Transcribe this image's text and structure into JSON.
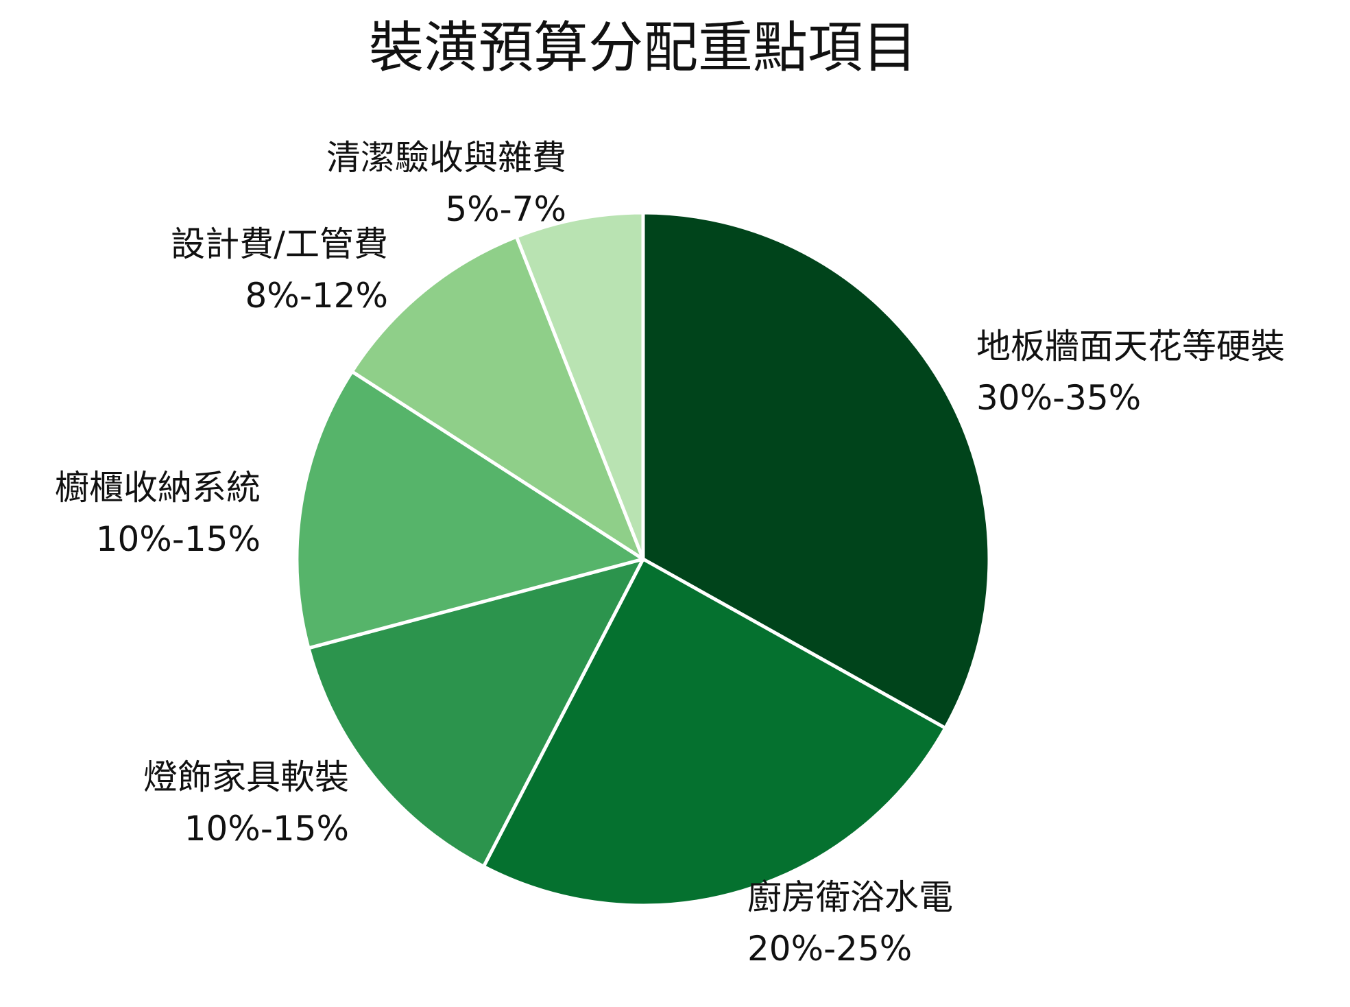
{
  "chart_data": {
    "type": "pie",
    "title": "裝潢預算分配重點項目",
    "slices": [
      {
        "label": "地板牆面天花等硬裝",
        "range_text": "30%-35%",
        "value": 33.33,
        "color": "#00441b"
      },
      {
        "label": "廚房衛浴水電",
        "range_text": "20%-25%",
        "value": 24.67,
        "color": "#05712f"
      },
      {
        "label": "燈飾家具軟裝",
        "range_text": "10%-15%",
        "value": 13.33,
        "color": "#2c944d"
      },
      {
        "label": "櫥櫃收納系統",
        "range_text": "10%-15%",
        "value": 13.33,
        "color": "#56b46a"
      },
      {
        "label": "設計費/工管費",
        "range_text": "8%-12%",
        "value": 10.0,
        "color": "#8fcf89"
      },
      {
        "label": "清潔驗收與雜費",
        "range_text": "5%-7%",
        "value": 6.0,
        "color": "#b9e3b2"
      }
    ],
    "start_angle": "12 o'clock",
    "direction": "clockwise",
    "legend": "none",
    "slice_separator_color": "#ffffff"
  }
}
